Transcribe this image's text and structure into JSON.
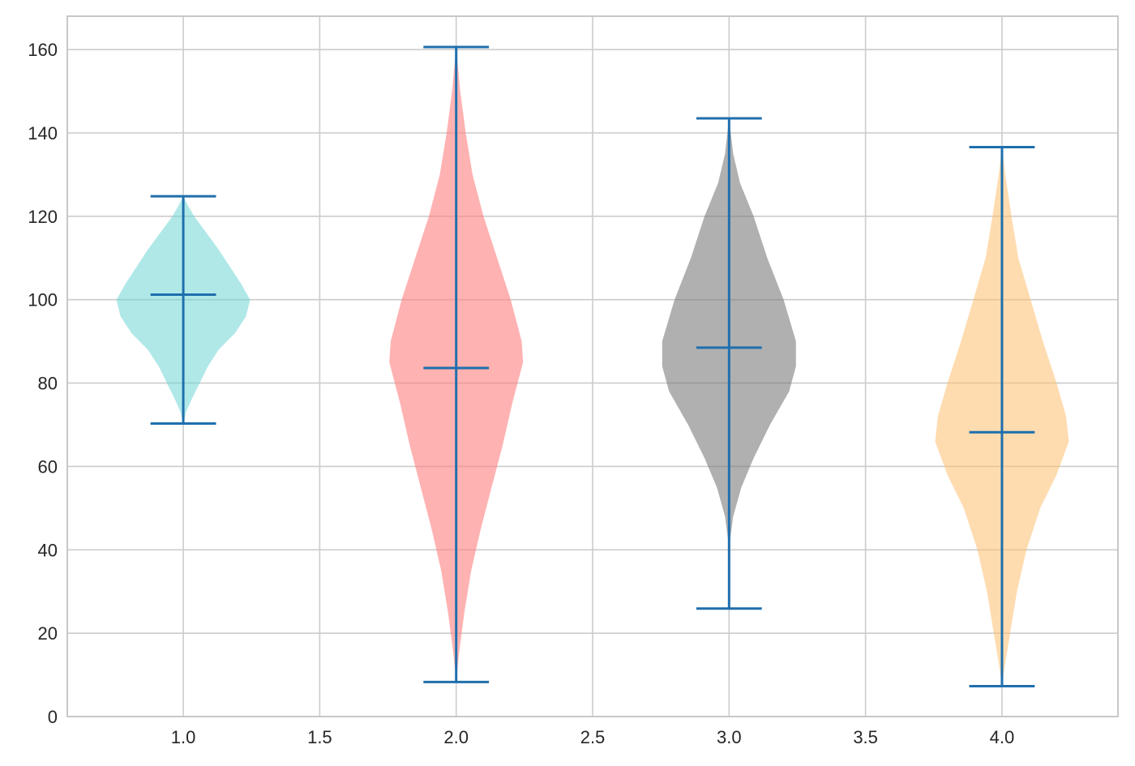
{
  "chart_data": {
    "type": "violin",
    "title": "",
    "xlabel": "",
    "ylabel": "",
    "xlim": [
      0.575,
      4.425
    ],
    "ylim": [
      0,
      168
    ],
    "x_ticks": [
      "1.0",
      "1.5",
      "2.0",
      "2.5",
      "3.0",
      "3.5",
      "4.0"
    ],
    "x_tick_values": [
      1.0,
      1.5,
      2.0,
      2.5,
      3.0,
      3.5,
      4.0
    ],
    "y_ticks": [
      "0",
      "20",
      "40",
      "60",
      "80",
      "100",
      "120",
      "140",
      "160"
    ],
    "y_tick_values": [
      0,
      20,
      40,
      60,
      80,
      100,
      120,
      140,
      160
    ],
    "grid": true,
    "stat_line_color": "#1f6fad",
    "series": [
      {
        "position": 1.0,
        "color": "#6fd6d6",
        "opacity": 0.55,
        "min": 70.3,
        "max": 124.8,
        "mean": 101.2,
        "density_profile": [
          [
            70.3,
            0.0
          ],
          [
            73,
            0.01
          ],
          [
            76,
            0.03
          ],
          [
            80,
            0.06
          ],
          [
            84,
            0.09
          ],
          [
            88,
            0.13
          ],
          [
            92,
            0.19
          ],
          [
            96,
            0.23
          ],
          [
            100,
            0.245
          ],
          [
            104,
            0.21
          ],
          [
            108,
            0.17
          ],
          [
            112,
            0.13
          ],
          [
            116,
            0.085
          ],
          [
            120,
            0.04
          ],
          [
            122.5,
            0.018
          ],
          [
            124.8,
            0.0
          ]
        ]
      },
      {
        "position": 2.0,
        "color": "#ff7f7f",
        "opacity": 0.6,
        "min": 8.3,
        "max": 160.6,
        "mean": 83.6,
        "density_profile": [
          [
            8.3,
            0.0
          ],
          [
            15,
            0.01
          ],
          [
            25,
            0.03
          ],
          [
            35,
            0.055
          ],
          [
            45,
            0.09
          ],
          [
            55,
            0.13
          ],
          [
            65,
            0.17
          ],
          [
            75,
            0.205
          ],
          [
            85,
            0.245
          ],
          [
            90,
            0.24
          ],
          [
            100,
            0.2
          ],
          [
            110,
            0.15
          ],
          [
            120,
            0.1
          ],
          [
            130,
            0.06
          ],
          [
            140,
            0.035
          ],
          [
            150,
            0.015
          ],
          [
            160.6,
            0.0
          ]
        ]
      },
      {
        "position": 3.0,
        "color": "#777777",
        "opacity": 0.58,
        "min": 25.9,
        "max": 143.5,
        "mean": 88.5,
        "density_profile": [
          [
            25.9,
            0.0
          ],
          [
            35,
            0.0
          ],
          [
            42,
            0.003
          ],
          [
            48,
            0.015
          ],
          [
            55,
            0.045
          ],
          [
            62,
            0.09
          ],
          [
            70,
            0.15
          ],
          [
            78,
            0.22
          ],
          [
            84,
            0.245
          ],
          [
            90,
            0.245
          ],
          [
            100,
            0.2
          ],
          [
            110,
            0.14
          ],
          [
            120,
            0.09
          ],
          [
            128,
            0.04
          ],
          [
            135,
            0.015
          ],
          [
            143.5,
            0.0
          ]
        ]
      },
      {
        "position": 4.0,
        "color": "#fdbf6f",
        "opacity": 0.55,
        "min": 7.3,
        "max": 136.6,
        "mean": 68.2,
        "density_profile": [
          [
            7.3,
            0.0
          ],
          [
            12,
            0.01
          ],
          [
            20,
            0.03
          ],
          [
            30,
            0.055
          ],
          [
            40,
            0.09
          ],
          [
            50,
            0.14
          ],
          [
            58,
            0.2
          ],
          [
            66,
            0.245
          ],
          [
            72,
            0.235
          ],
          [
            80,
            0.2
          ],
          [
            90,
            0.15
          ],
          [
            100,
            0.105
          ],
          [
            110,
            0.06
          ],
          [
            120,
            0.035
          ],
          [
            130,
            0.012
          ],
          [
            136.6,
            0.0
          ]
        ]
      }
    ]
  }
}
